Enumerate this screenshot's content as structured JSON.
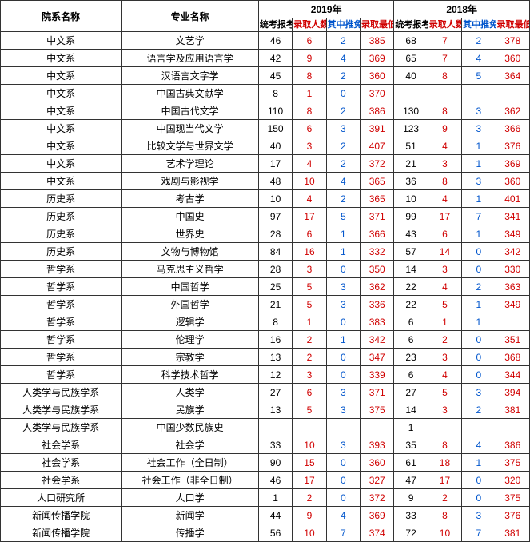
{
  "headers": {
    "dept": "院系名称",
    "major": "专业名称",
    "year2019": "2019年",
    "year2018": "2018年",
    "applicants": "统考报考人数",
    "admitted": "录取人数",
    "recommended": "其中推免录取人数",
    "minScore": "录取最低分"
  },
  "colors": {
    "red": "#d00000",
    "blue": "#0055cc",
    "black": "#000000",
    "border": "#333333",
    "bg": "#ffffff"
  },
  "rows": [
    {
      "dept": "中文系",
      "major": "文艺学",
      "a19": "46",
      "b19": "6",
      "c19": "2",
      "d19": "385",
      "a18": "68",
      "b18": "7",
      "c18": "2",
      "d18": "378"
    },
    {
      "dept": "中文系",
      "major": "语言学及应用语言学",
      "a19": "42",
      "b19": "9",
      "c19": "4",
      "d19": "369",
      "a18": "65",
      "b18": "7",
      "c18": "4",
      "d18": "360"
    },
    {
      "dept": "中文系",
      "major": "汉语言文字学",
      "a19": "45",
      "b19": "8",
      "c19": "2",
      "d19": "360",
      "a18": "40",
      "b18": "8",
      "c18": "5",
      "d18": "364"
    },
    {
      "dept": "中文系",
      "major": "中国古典文献学",
      "a19": "8",
      "b19": "1",
      "c19": "0",
      "d19": "370",
      "a18": "",
      "b18": "",
      "c18": "",
      "d18": ""
    },
    {
      "dept": "中文系",
      "major": "中国古代文学",
      "a19": "110",
      "b19": "8",
      "c19": "2",
      "d19": "386",
      "a18": "130",
      "b18": "8",
      "c18": "3",
      "d18": "362"
    },
    {
      "dept": "中文系",
      "major": "中国现当代文学",
      "a19": "150",
      "b19": "6",
      "c19": "3",
      "d19": "391",
      "a18": "123",
      "b18": "9",
      "c18": "3",
      "d18": "366"
    },
    {
      "dept": "中文系",
      "major": "比较文学与世界文学",
      "a19": "40",
      "b19": "3",
      "c19": "2",
      "d19": "407",
      "a18": "51",
      "b18": "4",
      "c18": "1",
      "d18": "376"
    },
    {
      "dept": "中文系",
      "major": "艺术学理论",
      "a19": "17",
      "b19": "4",
      "c19": "2",
      "d19": "372",
      "a18": "21",
      "b18": "3",
      "c18": "1",
      "d18": "369"
    },
    {
      "dept": "中文系",
      "major": "戏剧与影视学",
      "a19": "48",
      "b19": "10",
      "c19": "4",
      "d19": "365",
      "a18": "36",
      "b18": "8",
      "c18": "3",
      "d18": "360"
    },
    {
      "dept": "历史系",
      "major": "考古学",
      "a19": "10",
      "b19": "4",
      "c19": "2",
      "d19": "365",
      "a18": "10",
      "b18": "4",
      "c18": "1",
      "d18": "401"
    },
    {
      "dept": "历史系",
      "major": "中国史",
      "a19": "97",
      "b19": "17",
      "c19": "5",
      "d19": "371",
      "a18": "99",
      "b18": "17",
      "c18": "7",
      "d18": "341"
    },
    {
      "dept": "历史系",
      "major": "世界史",
      "a19": "28",
      "b19": "6",
      "c19": "1",
      "d19": "366",
      "a18": "43",
      "b18": "6",
      "c18": "1",
      "d18": "349"
    },
    {
      "dept": "历史系",
      "major": "文物与博物馆",
      "a19": "84",
      "b19": "16",
      "c19": "1",
      "d19": "332",
      "a18": "57",
      "b18": "14",
      "c18": "0",
      "d18": "342"
    },
    {
      "dept": "哲学系",
      "major": "马克思主义哲学",
      "a19": "28",
      "b19": "3",
      "c19": "0",
      "d19": "350",
      "a18": "14",
      "b18": "3",
      "c18": "0",
      "d18": "330"
    },
    {
      "dept": "哲学系",
      "major": "中国哲学",
      "a19": "25",
      "b19": "5",
      "c19": "3",
      "d19": "362",
      "a18": "22",
      "b18": "4",
      "c18": "2",
      "d18": "363"
    },
    {
      "dept": "哲学系",
      "major": "外国哲学",
      "a19": "21",
      "b19": "5",
      "c19": "3",
      "d19": "336",
      "a18": "22",
      "b18": "5",
      "c18": "1",
      "d18": "349"
    },
    {
      "dept": "哲学系",
      "major": "逻辑学",
      "a19": "8",
      "b19": "1",
      "c19": "0",
      "d19": "383",
      "a18": "6",
      "b18": "1",
      "c18": "1",
      "d18": ""
    },
    {
      "dept": "哲学系",
      "major": "伦理学",
      "a19": "16",
      "b19": "2",
      "c19": "1",
      "d19": "342",
      "a18": "6",
      "b18": "2",
      "c18": "0",
      "d18": "351"
    },
    {
      "dept": "哲学系",
      "major": "宗教学",
      "a19": "13",
      "b19": "2",
      "c19": "0",
      "d19": "347",
      "a18": "23",
      "b18": "3",
      "c18": "0",
      "d18": "368"
    },
    {
      "dept": "哲学系",
      "major": "科学技术哲学",
      "a19": "12",
      "b19": "3",
      "c19": "0",
      "d19": "339",
      "a18": "6",
      "b18": "4",
      "c18": "0",
      "d18": "344"
    },
    {
      "dept": "人类学与民族学系",
      "major": "人类学",
      "a19": "27",
      "b19": "6",
      "c19": "3",
      "d19": "371",
      "a18": "27",
      "b18": "5",
      "c18": "3",
      "d18": "394"
    },
    {
      "dept": "人类学与民族学系",
      "major": "民族学",
      "a19": "13",
      "b19": "5",
      "c19": "3",
      "d19": "375",
      "a18": "14",
      "b18": "3",
      "c18": "2",
      "d18": "381"
    },
    {
      "dept": "人类学与民族学系",
      "major": "中国少数民族史",
      "a19": "",
      "b19": "",
      "c19": "",
      "d19": "",
      "a18": "1",
      "b18": "",
      "c18": "",
      "d18": ""
    },
    {
      "dept": "社会学系",
      "major": "社会学",
      "a19": "33",
      "b19": "10",
      "c19": "3",
      "d19": "393",
      "a18": "35",
      "b18": "8",
      "c18": "4",
      "d18": "386"
    },
    {
      "dept": "社会学系",
      "major": "社会工作（全日制）",
      "a19": "90",
      "b19": "15",
      "c19": "0",
      "d19": "360",
      "a18": "61",
      "b18": "18",
      "c18": "1",
      "d18": "375"
    },
    {
      "dept": "社会学系",
      "major": "社会工作（非全日制）",
      "a19": "46",
      "b19": "17",
      "c19": "0",
      "d19": "327",
      "a18": "47",
      "b18": "17",
      "c18": "0",
      "d18": "320"
    },
    {
      "dept": "人口研究所",
      "major": "人口学",
      "a19": "1",
      "b19": "2",
      "c19": "0",
      "d19": "372",
      "a18": "9",
      "b18": "2",
      "c18": "0",
      "d18": "375"
    },
    {
      "dept": "新闻传播学院",
      "major": "新闻学",
      "a19": "44",
      "b19": "9",
      "c19": "4",
      "d19": "369",
      "a18": "33",
      "b18": "8",
      "c18": "3",
      "d18": "376"
    },
    {
      "dept": "新闻传播学院",
      "major": "传播学",
      "a19": "56",
      "b19": "10",
      "c19": "7",
      "d19": "374",
      "a18": "72",
      "b18": "10",
      "c18": "7",
      "d18": "381"
    }
  ]
}
